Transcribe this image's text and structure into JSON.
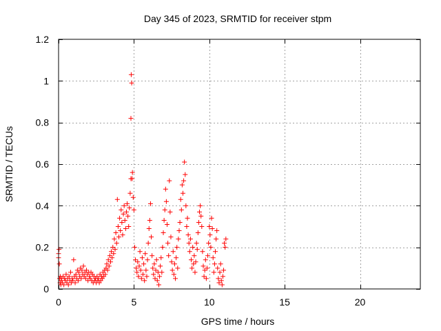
{
  "chart_data": {
    "type": "scatter",
    "title": "Day 345 of 2023, SRMTID for receiver stpm",
    "xlabel": "GPS time / hours",
    "ylabel": "SRMTID / TECUs",
    "xlim": [
      0,
      24
    ],
    "ylim": [
      0,
      1.2
    ],
    "grid": true,
    "marker": "+",
    "series_color": "#ff0000",
    "xticks": [
      0,
      5,
      10,
      15,
      20
    ],
    "xtick_labels": [
      "0",
      "5",
      "10",
      "15",
      "20"
    ],
    "yticks": [
      0,
      0.2,
      0.4,
      0.6,
      0.8,
      1.0,
      1.2
    ],
    "ytick_labels": [
      "0",
      "0.2",
      "0.4",
      "0.6",
      "0.8",
      "1",
      "1.2"
    ],
    "series": [
      {
        "name": "SRMTID",
        "points": [
          [
            0.0,
            0.17
          ],
          [
            0.0,
            0.15
          ],
          [
            0.03,
            0.19
          ],
          [
            0.05,
            0.12
          ],
          [
            0.07,
            0.05
          ],
          [
            0.1,
            0.03
          ],
          [
            0.12,
            0.06
          ],
          [
            0.15,
            0.02
          ],
          [
            0.18,
            0.04
          ],
          [
            0.2,
            0.05
          ],
          [
            0.25,
            0.03
          ],
          [
            0.3,
            0.06
          ],
          [
            0.35,
            0.02
          ],
          [
            0.4,
            0.05
          ],
          [
            0.45,
            0.04
          ],
          [
            0.5,
            0.07
          ],
          [
            0.55,
            0.03
          ],
          [
            0.6,
            0.05
          ],
          [
            0.65,
            0.02
          ],
          [
            0.7,
            0.06
          ],
          [
            0.75,
            0.04
          ],
          [
            0.8,
            0.08
          ],
          [
            0.85,
            0.03
          ],
          [
            0.9,
            0.05
          ],
          [
            0.95,
            0.04
          ],
          [
            1.0,
            0.14
          ],
          [
            1.05,
            0.06
          ],
          [
            1.1,
            0.03
          ],
          [
            1.15,
            0.07
          ],
          [
            1.2,
            0.05
          ],
          [
            1.25,
            0.09
          ],
          [
            1.3,
            0.04
          ],
          [
            1.35,
            0.08
          ],
          [
            1.4,
            0.06
          ],
          [
            1.45,
            0.1
          ],
          [
            1.5,
            0.05
          ],
          [
            1.55,
            0.09
          ],
          [
            1.6,
            0.07
          ],
          [
            1.65,
            0.11
          ],
          [
            1.7,
            0.06
          ],
          [
            1.75,
            0.08
          ],
          [
            1.8,
            0.05
          ],
          [
            1.85,
            0.09
          ],
          [
            1.9,
            0.07
          ],
          [
            1.95,
            0.04
          ],
          [
            2.0,
            0.08
          ],
          [
            2.05,
            0.06
          ],
          [
            2.1,
            0.05
          ],
          [
            2.15,
            0.08
          ],
          [
            2.2,
            0.04
          ],
          [
            2.25,
            0.07
          ],
          [
            2.3,
            0.03
          ],
          [
            2.35,
            0.06
          ],
          [
            2.4,
            0.04
          ],
          [
            2.45,
            0.05
          ],
          [
            2.5,
            0.03
          ],
          [
            2.55,
            0.06
          ],
          [
            2.6,
            0.04
          ],
          [
            2.65,
            0.05
          ],
          [
            2.7,
            0.03
          ],
          [
            2.75,
            0.07
          ],
          [
            2.8,
            0.04
          ],
          [
            2.85,
            0.06
          ],
          [
            2.9,
            0.05
          ],
          [
            2.95,
            0.08
          ],
          [
            3.0,
            0.06
          ],
          [
            3.05,
            0.09
          ],
          [
            3.1,
            0.07
          ],
          [
            3.15,
            0.1
          ],
          [
            3.2,
            0.12
          ],
          [
            3.25,
            0.09
          ],
          [
            3.3,
            0.14
          ],
          [
            3.35,
            0.11
          ],
          [
            3.4,
            0.16
          ],
          [
            3.45,
            0.13
          ],
          [
            3.5,
            0.18
          ],
          [
            3.55,
            0.15
          ],
          [
            3.6,
            0.2
          ],
          [
            3.65,
            0.17
          ],
          [
            3.7,
            0.24
          ],
          [
            3.75,
            0.19
          ],
          [
            3.8,
            0.27
          ],
          [
            3.85,
            0.22
          ],
          [
            3.9,
            0.43
          ],
          [
            3.95,
            0.3
          ],
          [
            4.0,
            0.25
          ],
          [
            4.05,
            0.34
          ],
          [
            4.1,
            0.28
          ],
          [
            4.15,
            0.38
          ],
          [
            4.2,
            0.32
          ],
          [
            4.25,
            0.26
          ],
          [
            4.3,
            0.36
          ],
          [
            4.35,
            0.4
          ],
          [
            4.4,
            0.33
          ],
          [
            4.45,
            0.29
          ],
          [
            4.5,
            0.37
          ],
          [
            4.55,
            0.41
          ],
          [
            4.6,
            0.35
          ],
          [
            4.65,
            0.3
          ],
          [
            4.7,
            0.39
          ],
          [
            4.75,
            0.46
          ],
          [
            4.8,
            0.53
          ],
          [
            4.82,
            1.03
          ],
          [
            4.85,
            0.99
          ],
          [
            4.8,
            0.82
          ],
          [
            4.88,
            0.53
          ],
          [
            4.9,
            0.56
          ],
          [
            4.95,
            0.44
          ],
          [
            5.0,
            0.38
          ],
          [
            5.05,
            0.2
          ],
          [
            5.1,
            0.14
          ],
          [
            5.15,
            0.1
          ],
          [
            5.2,
            0.08
          ],
          [
            5.25,
            0.13
          ],
          [
            5.3,
            0.06
          ],
          [
            5.35,
            0.11
          ],
          [
            5.4,
            0.18
          ],
          [
            5.45,
            0.09
          ],
          [
            5.5,
            0.05
          ],
          [
            5.55,
            0.15
          ],
          [
            5.6,
            0.07
          ],
          [
            5.65,
            0.12
          ],
          [
            5.7,
            0.04
          ],
          [
            5.75,
            0.17
          ],
          [
            5.8,
            0.09
          ],
          [
            5.85,
            0.06
          ],
          [
            5.9,
            0.14
          ],
          [
            5.95,
            0.22
          ],
          [
            6.0,
            0.29
          ],
          [
            6.05,
            0.33
          ],
          [
            6.1,
            0.41
          ],
          [
            6.15,
            0.25
          ],
          [
            6.2,
            0.16
          ],
          [
            6.25,
            0.1
          ],
          [
            6.3,
            0.07
          ],
          [
            6.35,
            0.12
          ],
          [
            6.4,
            0.05
          ],
          [
            6.45,
            0.09
          ],
          [
            6.5,
            0.14
          ],
          [
            6.55,
            0.04
          ],
          [
            6.6,
            0.08
          ],
          [
            6.65,
            0.02
          ],
          [
            6.7,
            0.06
          ],
          [
            6.75,
            0.11
          ],
          [
            6.8,
            0.15
          ],
          [
            6.85,
            0.08
          ],
          [
            6.9,
            0.2
          ],
          [
            6.95,
            0.27
          ],
          [
            7.0,
            0.33
          ],
          [
            7.05,
            0.38
          ],
          [
            7.1,
            0.48
          ],
          [
            7.15,
            0.42
          ],
          [
            7.2,
            0.31
          ],
          [
            7.25,
            0.22
          ],
          [
            7.3,
            0.16
          ],
          [
            7.35,
            0.52
          ],
          [
            7.4,
            0.37
          ],
          [
            7.45,
            0.25
          ],
          [
            7.5,
            0.13
          ],
          [
            7.55,
            0.09
          ],
          [
            7.6,
            0.18
          ],
          [
            7.65,
            0.07
          ],
          [
            7.7,
            0.12
          ],
          [
            7.75,
            0.05
          ],
          [
            7.8,
            0.15
          ],
          [
            7.85,
            0.2
          ],
          [
            7.9,
            0.1
          ],
          [
            7.95,
            0.24
          ],
          [
            8.0,
            0.28
          ],
          [
            8.05,
            0.32
          ],
          [
            8.1,
            0.43
          ],
          [
            8.15,
            0.38
          ],
          [
            8.2,
            0.5
          ],
          [
            8.25,
            0.46
          ],
          [
            8.3,
            0.52
          ],
          [
            8.35,
            0.61
          ],
          [
            8.4,
            0.55
          ],
          [
            8.45,
            0.4
          ],
          [
            8.5,
            0.3
          ],
          [
            8.55,
            0.34
          ],
          [
            8.6,
            0.26
          ],
          [
            8.65,
            0.22
          ],
          [
            8.7,
            0.18
          ],
          [
            8.75,
            0.24
          ],
          [
            8.8,
            0.14
          ],
          [
            8.85,
            0.1
          ],
          [
            8.9,
            0.2
          ],
          [
            8.95,
            0.12
          ],
          [
            9.0,
            0.16
          ],
          [
            9.05,
            0.08
          ],
          [
            9.1,
            0.13
          ],
          [
            9.15,
            0.22
          ],
          [
            9.2,
            0.19
          ],
          [
            9.25,
            0.27
          ],
          [
            9.3,
            0.32
          ],
          [
            9.35,
            0.37
          ],
          [
            9.4,
            0.4
          ],
          [
            9.45,
            0.35
          ],
          [
            9.5,
            0.3
          ],
          [
            9.55,
            0.18
          ],
          [
            9.6,
            0.11
          ],
          [
            9.65,
            0.06
          ],
          [
            9.7,
            0.09
          ],
          [
            9.75,
            0.14
          ],
          [
            9.8,
            0.05
          ],
          [
            9.85,
            0.1
          ],
          [
            9.9,
            0.16
          ],
          [
            9.95,
            0.22
          ],
          [
            10.0,
            0.3
          ],
          [
            10.05,
            0.26
          ],
          [
            10.1,
            0.2
          ],
          [
            10.15,
            0.34
          ],
          [
            10.2,
            0.29
          ],
          [
            10.25,
            0.15
          ],
          [
            10.3,
            0.08
          ],
          [
            10.35,
            0.12
          ],
          [
            10.4,
            0.18
          ],
          [
            10.45,
            0.24
          ],
          [
            10.5,
            0.28
          ],
          [
            10.55,
            0.1
          ],
          [
            10.6,
            0.05
          ],
          [
            10.65,
            0.03
          ],
          [
            10.7,
            0.08
          ],
          [
            10.75,
            0.12
          ],
          [
            10.8,
            0.04
          ],
          [
            10.85,
            0.02
          ],
          [
            10.9,
            0.06
          ],
          [
            10.95,
            0.09
          ],
          [
            11.0,
            0.22
          ],
          [
            11.05,
            0.2
          ],
          [
            11.1,
            0.24
          ]
        ]
      }
    ]
  }
}
